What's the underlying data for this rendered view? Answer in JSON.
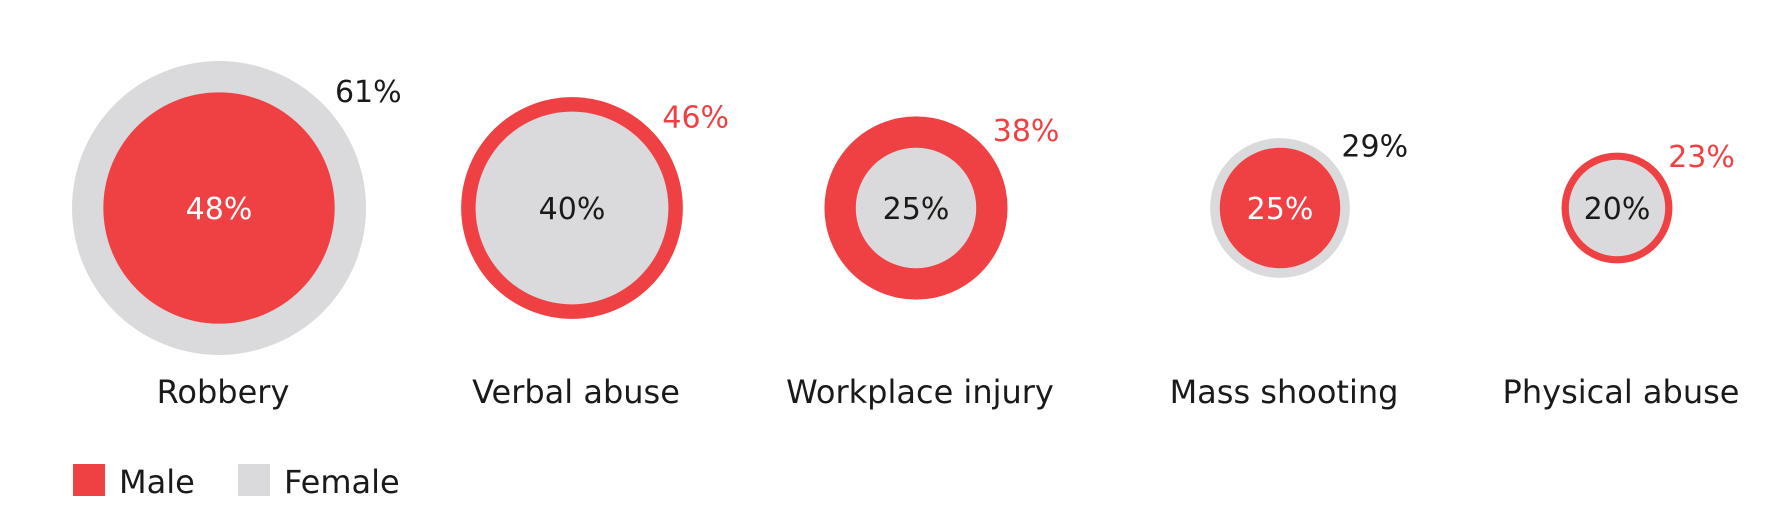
{
  "chart_data": {
    "type": "nested-bubble",
    "categories": [
      "Robbery",
      "Verbal abuse",
      "Workplace injury",
      "Mass shooting",
      "Physical abuse"
    ],
    "series": [
      {
        "name": "Male",
        "values": [
          48,
          46,
          38,
          25,
          23
        ]
      },
      {
        "name": "Female",
        "values": [
          61,
          40,
          25,
          29,
          20
        ]
      }
    ],
    "value_format": "{v}%",
    "legend": {
      "placement": "bottom-left",
      "items": [
        "Male",
        "Female"
      ]
    },
    "colors": {
      "Male": "#ef4144",
      "Female": "#dadadc",
      "label_on_male": "#ffffff",
      "label_on_female": "#1a1a1a",
      "label_outside_male": "#ef4144",
      "label_outside_female": "#1a1a1a"
    }
  }
}
